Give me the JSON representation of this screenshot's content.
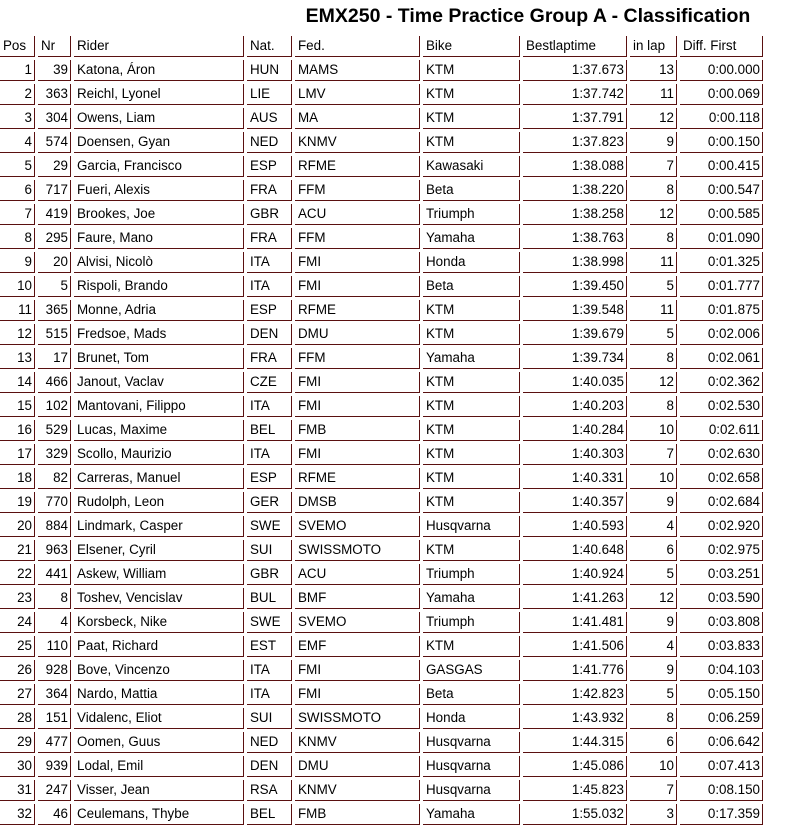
{
  "title": "EMX250 - Time Practice Group A - Classification",
  "columns": [
    "Pos",
    "Nr",
    "Rider",
    "Nat.",
    "Fed.",
    "Bike",
    "Bestlaptime",
    "in lap",
    "Diff. First"
  ],
  "rows": [
    [
      "1",
      "39",
      "Katona, Áron",
      "HUN",
      "MAMS",
      "KTM",
      "1:37.673",
      "13",
      "0:00.000"
    ],
    [
      "2",
      "363",
      "Reichl, Lyonel",
      "LIE",
      "LMV",
      "KTM",
      "1:37.742",
      "11",
      "0:00.069"
    ],
    [
      "3",
      "304",
      "Owens, Liam",
      "AUS",
      "MA",
      "KTM",
      "1:37.791",
      "12",
      "0:00.118"
    ],
    [
      "4",
      "574",
      "Doensen, Gyan",
      "NED",
      "KNMV",
      "KTM",
      "1:37.823",
      "9",
      "0:00.150"
    ],
    [
      "5",
      "29",
      "Garcia, Francisco",
      "ESP",
      "RFME",
      "Kawasaki",
      "1:38.088",
      "7",
      "0:00.415"
    ],
    [
      "6",
      "717",
      "Fueri, Alexis",
      "FRA",
      "FFM",
      "Beta",
      "1:38.220",
      "8",
      "0:00.547"
    ],
    [
      "7",
      "419",
      "Brookes, Joe",
      "GBR",
      "ACU",
      "Triumph",
      "1:38.258",
      "12",
      "0:00.585"
    ],
    [
      "8",
      "295",
      "Faure, Mano",
      "FRA",
      "FFM",
      "Yamaha",
      "1:38.763",
      "8",
      "0:01.090"
    ],
    [
      "9",
      "20",
      "Alvisi, Nicolò",
      "ITA",
      "FMI",
      "Honda",
      "1:38.998",
      "11",
      "0:01.325"
    ],
    [
      "10",
      "5",
      "Rispoli, Brando",
      "ITA",
      "FMI",
      "Beta",
      "1:39.450",
      "5",
      "0:01.777"
    ],
    [
      "11",
      "365",
      "Monne, Adria",
      "ESP",
      "RFME",
      "KTM",
      "1:39.548",
      "11",
      "0:01.875"
    ],
    [
      "12",
      "515",
      "Fredsoe, Mads",
      "DEN",
      "DMU",
      "KTM",
      "1:39.679",
      "5",
      "0:02.006"
    ],
    [
      "13",
      "17",
      "Brunet, Tom",
      "FRA",
      "FFM",
      "Yamaha",
      "1:39.734",
      "8",
      "0:02.061"
    ],
    [
      "14",
      "466",
      "Janout, Vaclav",
      "CZE",
      "FMI",
      "KTM",
      "1:40.035",
      "12",
      "0:02.362"
    ],
    [
      "15",
      "102",
      "Mantovani, Filippo",
      "ITA",
      "FMI",
      "KTM",
      "1:40.203",
      "8",
      "0:02.530"
    ],
    [
      "16",
      "529",
      "Lucas, Maxime",
      "BEL",
      "FMB",
      "KTM",
      "1:40.284",
      "10",
      "0:02.611"
    ],
    [
      "17",
      "329",
      "Scollo, Maurizio",
      "ITA",
      "FMI",
      "KTM",
      "1:40.303",
      "7",
      "0:02.630"
    ],
    [
      "18",
      "82",
      "Carreras, Manuel",
      "ESP",
      "RFME",
      "KTM",
      "1:40.331",
      "10",
      "0:02.658"
    ],
    [
      "19",
      "770",
      "Rudolph, Leon",
      "GER",
      "DMSB",
      "KTM",
      "1:40.357",
      "9",
      "0:02.684"
    ],
    [
      "20",
      "884",
      "Lindmark, Casper",
      "SWE",
      "SVEMO",
      "Husqvarna",
      "1:40.593",
      "4",
      "0:02.920"
    ],
    [
      "21",
      "963",
      "Elsener, Cyril",
      "SUI",
      "SWISSMOTO",
      "KTM",
      "1:40.648",
      "6",
      "0:02.975"
    ],
    [
      "22",
      "441",
      "Askew, William",
      "GBR",
      "ACU",
      "Triumph",
      "1:40.924",
      "5",
      "0:03.251"
    ],
    [
      "23",
      "8",
      "Toshev, Vencislav",
      "BUL",
      "BMF",
      "Yamaha",
      "1:41.263",
      "12",
      "0:03.590"
    ],
    [
      "24",
      "4",
      "Korsbeck, Nike",
      "SWE",
      "SVEMO",
      "Triumph",
      "1:41.481",
      "9",
      "0:03.808"
    ],
    [
      "25",
      "110",
      "Paat, Richard",
      "EST",
      "EMF",
      "KTM",
      "1:41.506",
      "4",
      "0:03.833"
    ],
    [
      "26",
      "928",
      "Bove, Vincenzo",
      "ITA",
      "FMI",
      "GASGAS",
      "1:41.776",
      "9",
      "0:04.103"
    ],
    [
      "27",
      "364",
      "Nardo, Mattia",
      "ITA",
      "FMI",
      "Beta",
      "1:42.823",
      "5",
      "0:05.150"
    ],
    [
      "28",
      "151",
      "Vidalenc, Eliot",
      "SUI",
      "SWISSMOTO",
      "Honda",
      "1:43.932",
      "8",
      "0:06.259"
    ],
    [
      "29",
      "477",
      "Oomen, Guus",
      "NED",
      "KNMV",
      "Husqvarna",
      "1:44.315",
      "6",
      "0:06.642"
    ],
    [
      "30",
      "939",
      "Lodal, Emil",
      "DEN",
      "DMU",
      "Husqvarna",
      "1:45.086",
      "10",
      "0:07.413"
    ],
    [
      "31",
      "247",
      "Visser, Jean",
      "RSA",
      "KNMV",
      "Husqvarna",
      "1:45.823",
      "7",
      "0:08.150"
    ],
    [
      "32",
      "46",
      "Ceulemans, Thybe",
      "BEL",
      "FMB",
      "Yamaha",
      "1:55.032",
      "3",
      "0:17.359"
    ]
  ]
}
